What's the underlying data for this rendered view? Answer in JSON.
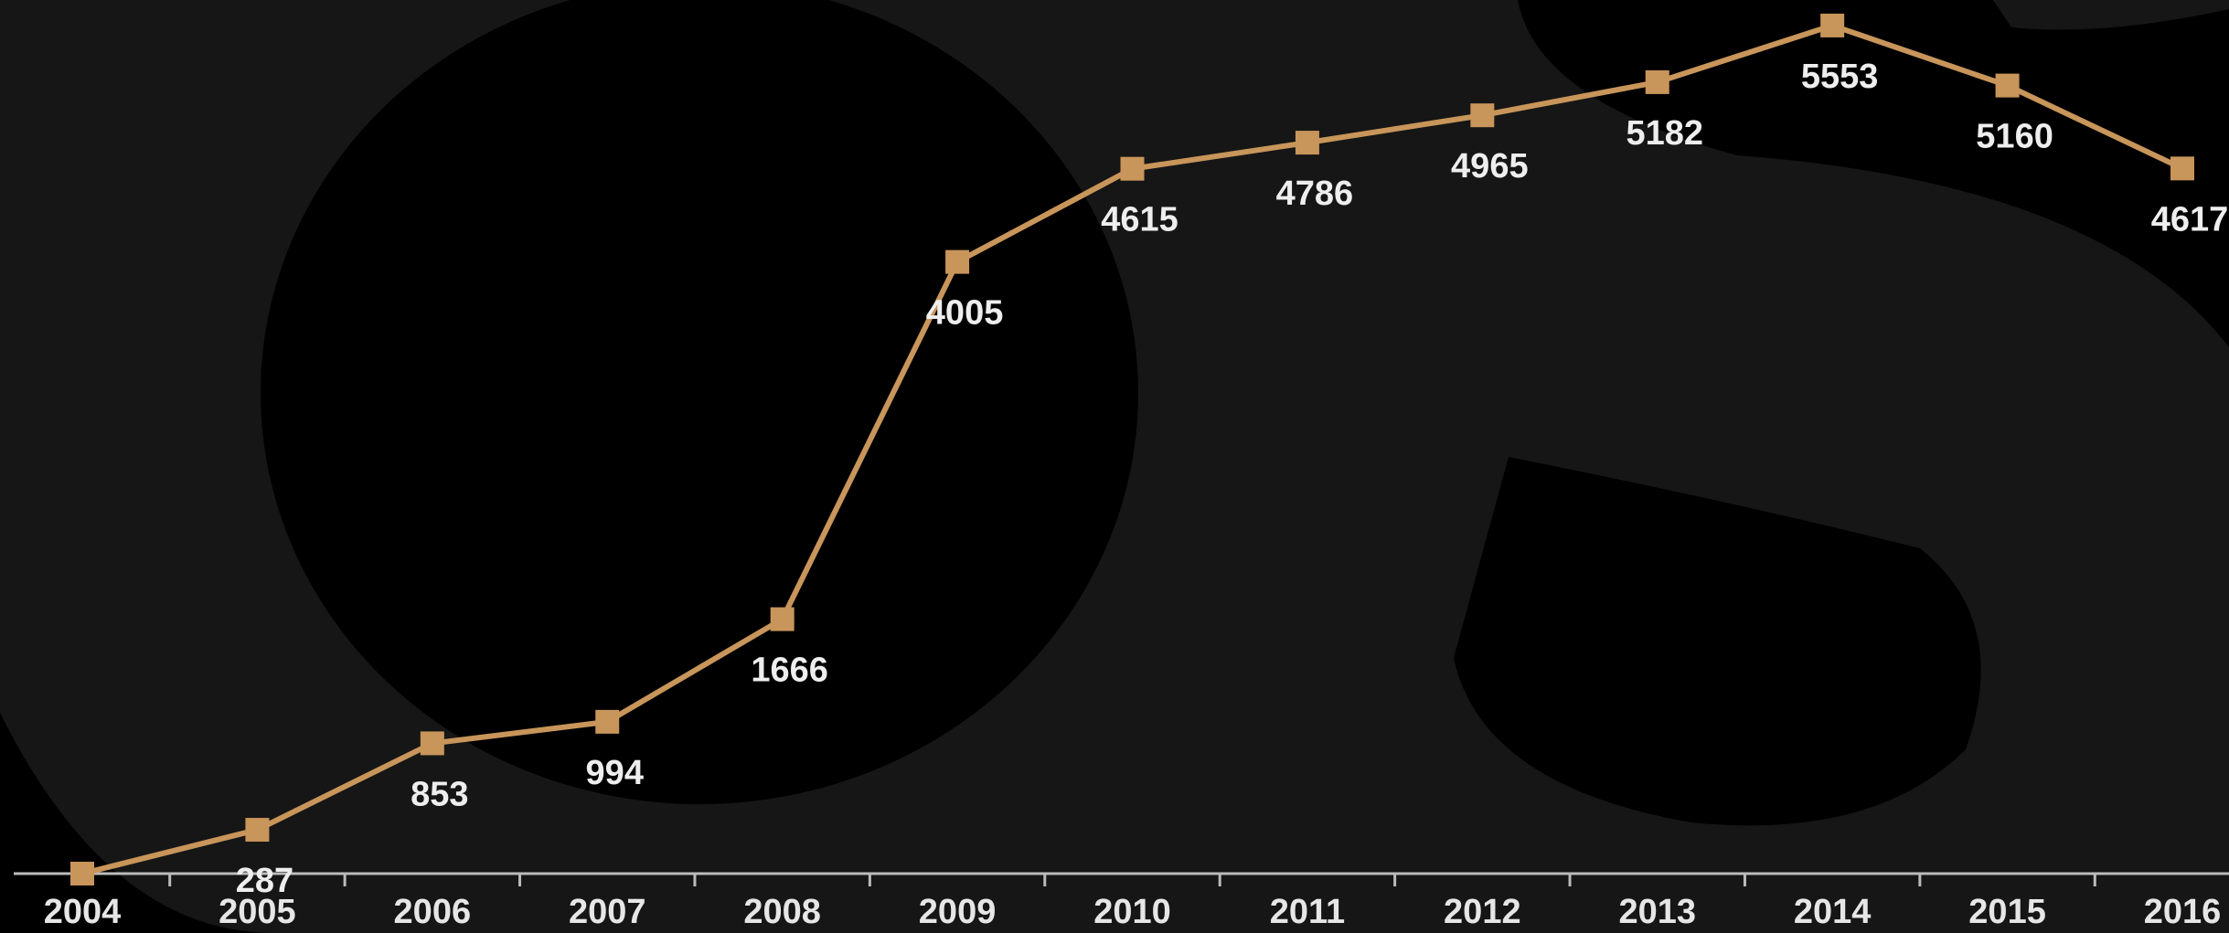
{
  "chart_data": {
    "type": "line",
    "categories": [
      "2004",
      "2005",
      "2006",
      "2007",
      "2008",
      "2009",
      "2010",
      "2011",
      "2012",
      "2013",
      "2014",
      "2015",
      "2016"
    ],
    "series": [
      {
        "color": "#c8955a",
        "values": [
          0,
          287,
          853,
          994,
          1666,
          4005,
          4615,
          4786,
          4965,
          5182,
          5553,
          5160,
          4617
        ],
        "value_labels": [
          null,
          "287",
          "853",
          "994",
          "1666",
          "4005",
          "4615",
          "4786",
          "4965",
          "5182",
          "5553",
          "5160",
          "4617"
        ]
      }
    ],
    "ylim": [
      0,
      5720
    ],
    "grid": false
  }
}
